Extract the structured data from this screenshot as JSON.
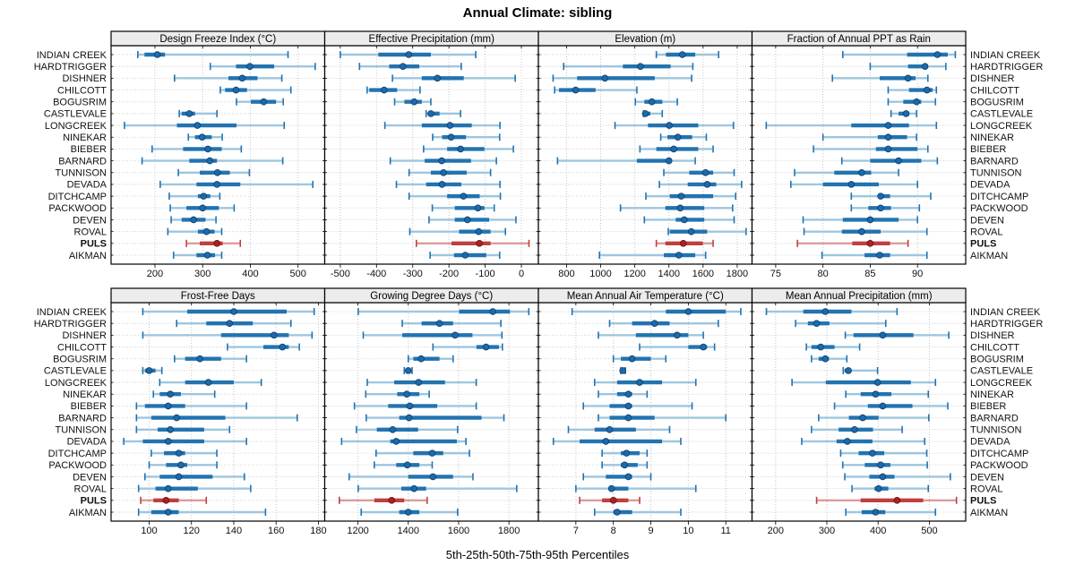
{
  "title": "Annual Climate: sibling",
  "caption": "5th-25th-50th-75th-95th Percentiles",
  "percentile_labels": [
    "5th",
    "25th",
    "50th",
    "75th",
    "95th"
  ],
  "stations": [
    "INDIAN CREEK",
    "HARDTRIGGER",
    "DISHNER",
    "CHILCOTT",
    "BOGUSRIM",
    "CASTLEVALE",
    "LONGCREEK",
    "NINEKAR",
    "BIEBER",
    "BARNARD",
    "TUNNISON",
    "DEVADA",
    "DITCHCAMP",
    "PACKWOOD",
    "DEVEN",
    "ROVAL",
    "PULS",
    "AIKMAN"
  ],
  "highlight_station": "PULS",
  "colors": {
    "blue_main": "#2273b0",
    "blue_light": "#9ec6df",
    "blue_dot": "#1b6aad",
    "blue_dot_edge": "#0d3d66",
    "red_main": "#bf3f3f",
    "red_light": "#dc9c9c",
    "red_dot": "#aa2222",
    "red_dot_edge": "#661111",
    "strip_bg": "#ececec",
    "panel_border": "#000000",
    "grid_line": "#c6c6c6"
  },
  "chart_data": [
    {
      "type": "dotplot-percentiles",
      "title": "Design Freeze Index (°C)",
      "grid_row": 0,
      "col": 0,
      "axis_range": [
        108,
        556
      ],
      "ticks": [
        200,
        300,
        400,
        500
      ],
      "values": [
        [
          164,
          178,
          205,
          221,
          479
        ],
        [
          316,
          370,
          399,
          450,
          536
        ],
        [
          241,
          354,
          383,
          415,
          466
        ],
        [
          337,
          347,
          370,
          393,
          485
        ],
        [
          371,
          401,
          428,
          454,
          469
        ],
        [
          251,
          256,
          272,
          284,
          330
        ],
        [
          136,
          246,
          289,
          371,
          471
        ],
        [
          270,
          284,
          299,
          319,
          341
        ],
        [
          194,
          259,
          311,
          340,
          381
        ],
        [
          173,
          272,
          315,
          330,
          468
        ],
        [
          249,
          294,
          331,
          357,
          398
        ],
        [
          211,
          287,
          330,
          379,
          531
        ],
        [
          230,
          290,
          302,
          316,
          336
        ],
        [
          232,
          266,
          300,
          334,
          366
        ],
        [
          234,
          256,
          281,
          306,
          328
        ],
        [
          227,
          290,
          308,
          325,
          340
        ],
        [
          266,
          294,
          330,
          342,
          379
        ],
        [
          239,
          287,
          310,
          326,
          340
        ]
      ]
    },
    {
      "type": "dotplot-percentiles",
      "title": "Effective Precipitation (mm)",
      "grid_row": 0,
      "col": 1,
      "axis_range": [
        -543,
        47
      ],
      "ticks": [
        -500,
        -400,
        -300,
        -200,
        -100,
        0
      ],
      "values": [
        [
          -500,
          -395,
          -311,
          -250,
          -126
        ],
        [
          -447,
          -365,
          -327,
          -282,
          -166
        ],
        [
          -356,
          -275,
          -232,
          -159,
          -17
        ],
        [
          -426,
          -420,
          -379,
          -343,
          -280
        ],
        [
          -350,
          -323,
          -296,
          -275,
          -250
        ],
        [
          -263,
          -257,
          -250,
          -226,
          -168
        ],
        [
          -377,
          -275,
          -197,
          -137,
          -59
        ],
        [
          -245,
          -219,
          -194,
          -153,
          -60
        ],
        [
          -270,
          -205,
          -168,
          -102,
          -22
        ],
        [
          -362,
          -267,
          -220,
          -139,
          -69
        ],
        [
          -310,
          -250,
          -215,
          -151,
          -85
        ],
        [
          -345,
          -263,
          -219,
          -166,
          -59
        ],
        [
          -310,
          -205,
          -160,
          -115,
          -58
        ],
        [
          -246,
          -184,
          -120,
          -102,
          -75
        ],
        [
          -255,
          -184,
          -149,
          -89,
          -15
        ],
        [
          -308,
          -172,
          -118,
          -85,
          -44
        ],
        [
          -290,
          -193,
          -116,
          -85,
          21
        ],
        [
          -252,
          -186,
          -155,
          -97,
          -60
        ]
      ]
    },
    {
      "type": "dotplot-percentiles",
      "title": "Elevation (m)",
      "grid_row": 0,
      "col": 2,
      "axis_range": [
        635,
        1887
      ],
      "ticks": [
        800,
        1000,
        1200,
        1400,
        1600,
        1800
      ],
      "values": [
        [
          1326,
          1382,
          1479,
          1554,
          1691
        ],
        [
          783,
          1130,
          1233,
          1410,
          1540
        ],
        [
          721,
          862,
          1025,
          1317,
          1533
        ],
        [
          730,
          756,
          853,
          970,
          1212
        ],
        [
          1203,
          1256,
          1300,
          1361,
          1449
        ],
        [
          1251,
          1254,
          1262,
          1291,
          1361
        ],
        [
          1084,
          1277,
          1402,
          1572,
          1778
        ],
        [
          1352,
          1391,
          1452,
          1536,
          1619
        ],
        [
          1230,
          1326,
          1428,
          1572,
          1659
        ],
        [
          747,
          1212,
          1400,
          1416,
          1554
        ],
        [
          1370,
          1519,
          1615,
          1659,
          1782
        ],
        [
          1344,
          1510,
          1624,
          1677,
          1826
        ],
        [
          1265,
          1405,
          1472,
          1659,
          1791
        ],
        [
          1116,
          1379,
          1466,
          1607,
          1773
        ],
        [
          1256,
          1440,
          1490,
          1607,
          1782
        ],
        [
          1396,
          1405,
          1531,
          1624,
          1852
        ],
        [
          1326,
          1379,
          1484,
          1598,
          1659
        ],
        [
          993,
          1370,
          1458,
          1554,
          1615
        ]
      ]
    },
    {
      "type": "dotplot-percentiles",
      "title": "Fraction of Annual PPT as Rain",
      "grid_row": 0,
      "col": 3,
      "axis_range": [
        72.5,
        95.1
      ],
      "ticks": [
        75,
        80,
        85,
        90
      ],
      "values": [
        [
          82.1,
          88.9,
          92.1,
          93.2,
          94.0
        ],
        [
          85.0,
          89.0,
          90.8,
          91.1,
          93.0
        ],
        [
          81.0,
          86.0,
          89.0,
          89.8,
          91.1
        ],
        [
          86.9,
          89.1,
          91.0,
          91.6,
          92.0
        ],
        [
          86.9,
          88.5,
          89.9,
          90.4,
          91.9
        ],
        [
          87.2,
          88.0,
          88.8,
          89.1,
          89.9
        ],
        [
          74.0,
          83.0,
          86.9,
          89.1,
          92.0
        ],
        [
          80.0,
          85.8,
          86.9,
          88.9,
          89.9
        ],
        [
          79.0,
          85.6,
          86.9,
          90.0,
          91.1
        ],
        [
          82.0,
          85.0,
          88.0,
          90.4,
          92.1
        ],
        [
          77.0,
          81.2,
          84.1,
          85.1,
          88.0
        ],
        [
          76.6,
          80.0,
          83.0,
          85.9,
          90.0
        ],
        [
          83.0,
          85.9,
          86.1,
          87.1,
          91.4
        ],
        [
          83.0,
          84.8,
          86.1,
          87.2,
          90.2
        ],
        [
          77.9,
          82.1,
          85.0,
          88.0,
          90.0
        ],
        [
          78.0,
          82.0,
          84.1,
          86.1,
          91.0
        ],
        [
          77.3,
          83.1,
          85.0,
          87.1,
          89.0
        ],
        [
          79.9,
          84.4,
          86.0,
          87.1,
          91.0
        ]
      ]
    },
    {
      "type": "dotplot-percentiles",
      "title": "Frost-Free Days",
      "grid_row": 1,
      "col": 0,
      "axis_range": [
        82,
        183
      ],
      "ticks": [
        100,
        120,
        140,
        160,
        180
      ],
      "values": [
        [
          97,
          118,
          140,
          165,
          178
        ],
        [
          113,
          127,
          138,
          149,
          167
        ],
        [
          97,
          134,
          159,
          166,
          177
        ],
        [
          137,
          154,
          163,
          166,
          171
        ],
        [
          112,
          117,
          124,
          134,
          146
        ],
        [
          97,
          98,
          100,
          103,
          106
        ],
        [
          105,
          117,
          128,
          140,
          153
        ],
        [
          102,
          105,
          110,
          115,
          131
        ],
        [
          94,
          98,
          109,
          117,
          146
        ],
        [
          94,
          101,
          113,
          136,
          170
        ],
        [
          94,
          104,
          110,
          126,
          138
        ],
        [
          88,
          97,
          109,
          126,
          146
        ],
        [
          101,
          107,
          114,
          117,
          132
        ],
        [
          100,
          108,
          115,
          118,
          132
        ],
        [
          98,
          105,
          114,
          130,
          145
        ],
        [
          95,
          103,
          109,
          123,
          148
        ],
        [
          96,
          102,
          108,
          114,
          127
        ],
        [
          95,
          101,
          109,
          114,
          155
        ]
      ]
    },
    {
      "type": "dotplot-percentiles",
      "title": "Growing Degree Days (°C)",
      "grid_row": 1,
      "col": 1,
      "axis_range": [
        1068,
        1917
      ],
      "ticks": [
        1200,
        1400,
        1600,
        1800
      ],
      "values": [
        [
          1201,
          1602,
          1736,
          1804,
          1879
        ],
        [
          1376,
          1453,
          1524,
          1578,
          1768
        ],
        [
          1221,
          1376,
          1586,
          1655,
          1772
        ],
        [
          1498,
          1671,
          1709,
          1760,
          1774
        ],
        [
          1400,
          1420,
          1451,
          1524,
          1578
        ],
        [
          1384,
          1390,
          1400,
          1411,
          1415
        ],
        [
          1237,
          1344,
          1441,
          1546,
          1670
        ],
        [
          1231,
          1356,
          1394,
          1444,
          1483
        ],
        [
          1186,
          1320,
          1406,
          1515,
          1670
        ],
        [
          1233,
          1364,
          1403,
          1691,
          1780
        ],
        [
          1194,
          1275,
          1338,
          1439,
          1596
        ],
        [
          1135,
          1328,
          1352,
          1593,
          1629
        ],
        [
          1272,
          1420,
          1495,
          1539,
          1643
        ],
        [
          1265,
          1352,
          1396,
          1444,
          1495
        ],
        [
          1165,
          1400,
          1498,
          1578,
          1657
        ],
        [
          1201,
          1372,
          1423,
          1471,
          1831
        ],
        [
          1126,
          1265,
          1334,
          1384,
          1475
        ],
        [
          1213,
          1364,
          1400,
          1444,
          1596
        ]
      ]
    },
    {
      "type": "dotplot-percentiles",
      "title": "Mean Annual Air Temperature (°C)",
      "grid_row": 1,
      "col": 2,
      "axis_range": [
        6.0,
        11.7
      ],
      "ticks": [
        7,
        8,
        9,
        10,
        11
      ],
      "values": [
        [
          6.9,
          9.4,
          10.0,
          11.0,
          11.4
        ],
        [
          7.9,
          8.5,
          9.1,
          9.5,
          10.8
        ],
        [
          7.6,
          8.6,
          9.7,
          10.0,
          10.4
        ],
        [
          8.7,
          10.0,
          10.4,
          10.5,
          10.7
        ],
        [
          8.0,
          8.2,
          8.5,
          9.0,
          9.4
        ],
        [
          8.2,
          8.22,
          8.25,
          8.3,
          8.32
        ],
        [
          7.5,
          8.1,
          8.7,
          9.3,
          10.2
        ],
        [
          7.6,
          8.1,
          8.4,
          8.5,
          8.9
        ],
        [
          7.2,
          7.9,
          8.4,
          8.5,
          10.1
        ],
        [
          7.6,
          7.9,
          8.4,
          9.1,
          11.0
        ],
        [
          6.8,
          7.5,
          7.9,
          8.6,
          9.5
        ],
        [
          6.4,
          7.1,
          7.8,
          9.3,
          9.8
        ],
        [
          7.7,
          8.2,
          8.35,
          8.7,
          8.9
        ],
        [
          7.7,
          8.2,
          8.3,
          8.65,
          8.9
        ],
        [
          7.2,
          7.8,
          8.4,
          8.5,
          9.0
        ],
        [
          7.0,
          7.9,
          7.95,
          8.4,
          10.2
        ],
        [
          7.1,
          7.7,
          8.0,
          8.4,
          8.7
        ],
        [
          7.5,
          8.0,
          8.1,
          8.5,
          9.8
        ]
      ]
    },
    {
      "type": "dotplot-percentiles",
      "title": "Mean Annual Precipitation (mm)",
      "grid_row": 1,
      "col": 3,
      "axis_range": [
        154,
        571
      ],
      "ticks": [
        200,
        300,
        400,
        500
      ],
      "values": [
        [
          182,
          254,
          297,
          348,
          437
        ],
        [
          239,
          263,
          280,
          305,
          415
        ],
        [
          336,
          352,
          409,
          469,
          538
        ],
        [
          260,
          270,
          288,
          315,
          364
        ],
        [
          270,
          284,
          297,
          304,
          339
        ],
        [
          332,
          335,
          342,
          348,
          399
        ],
        [
          232,
          298,
          399,
          464,
          512
        ],
        [
          337,
          366,
          395,
          426,
          498
        ],
        [
          315,
          380,
          409,
          467,
          536
        ],
        [
          284,
          343,
          370,
          401,
          499
        ],
        [
          270,
          323,
          354,
          390,
          447
        ],
        [
          251,
          319,
          340,
          389,
          491
        ],
        [
          327,
          362,
          389,
          412,
          495
        ],
        [
          331,
          374,
          405,
          424,
          496
        ],
        [
          335,
          383,
          409,
          432,
          541
        ],
        [
          349,
          393,
          401,
          420,
          498
        ],
        [
          280,
          366,
          437,
          488,
          553
        ],
        [
          337,
          368,
          395,
          414,
          512
        ]
      ]
    }
  ]
}
